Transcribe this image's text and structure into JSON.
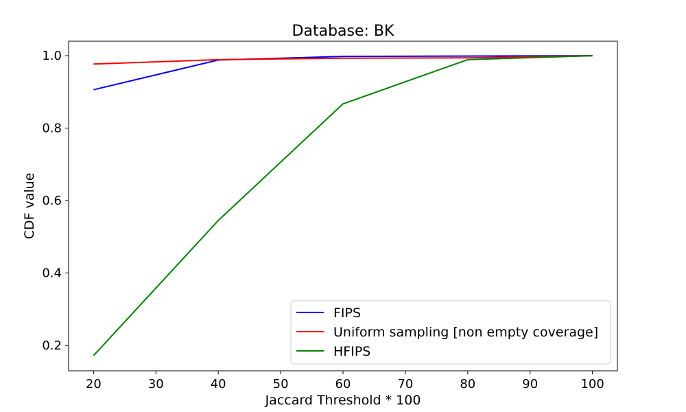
{
  "chart_data": {
    "type": "line",
    "title": "Database: BK",
    "xlabel": "Jaccard Threshold * 100",
    "ylabel": "CDF value",
    "x": [
      20,
      40,
      60,
      80,
      100
    ],
    "xlim": [
      16,
      104
    ],
    "ylim": [
      0.13,
      1.04
    ],
    "xticks": [
      20,
      30,
      40,
      50,
      60,
      70,
      80,
      90,
      100
    ],
    "yticks": [
      0.2,
      0.4,
      0.6,
      0.8,
      1.0
    ],
    "xtick_labels": [
      "20",
      "30",
      "40",
      "50",
      "60",
      "70",
      "80",
      "90",
      "100"
    ],
    "ytick_labels": [
      "0.2",
      "0.4",
      "0.6",
      "0.8",
      "1.0"
    ],
    "grid": false,
    "legend_position": "lower-right",
    "series": [
      {
        "name": "FIPS",
        "color": "#0000ff",
        "values": [
          0.906,
          0.988,
          0.998,
          0.999,
          1.0
        ]
      },
      {
        "name": "Uniform sampling [non empty coverage]",
        "color": "#ff0000",
        "values": [
          0.977,
          0.989,
          0.993,
          0.994,
          1.0
        ]
      },
      {
        "name": "HFIPS",
        "color": "#008000",
        "values": [
          0.172,
          0.545,
          0.867,
          0.989,
          1.0
        ]
      }
    ]
  }
}
